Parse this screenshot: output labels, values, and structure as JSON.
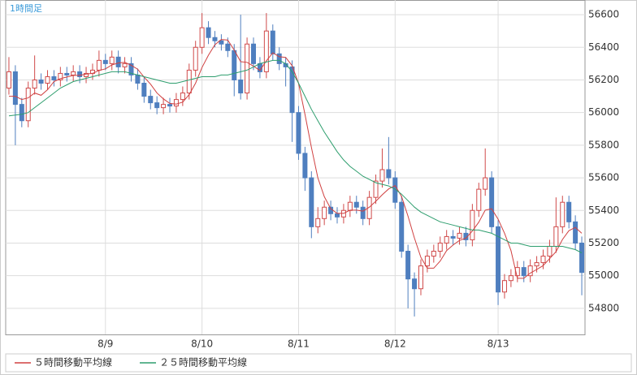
{
  "chart_data": {
    "type": "candlestick",
    "title": "1時間足",
    "categories": [
      null,
      null,
      null,
      null,
      null,
      null,
      null,
      null,
      null,
      null,
      null,
      null,
      null,
      null,
      null,
      "8/9",
      null,
      null,
      null,
      null,
      null,
      null,
      null,
      null,
      null,
      null,
      null,
      null,
      null,
      null,
      "8/10",
      null,
      null,
      null,
      null,
      null,
      null,
      null,
      null,
      null,
      null,
      null,
      null,
      null,
      null,
      "8/11",
      null,
      null,
      null,
      null,
      null,
      null,
      null,
      null,
      null,
      null,
      null,
      null,
      null,
      null,
      "8/12",
      null,
      null,
      null,
      null,
      null,
      null,
      null,
      null,
      null,
      null,
      null,
      null,
      null,
      null,
      null,
      "8/13",
      null,
      null,
      null,
      null,
      null,
      null,
      null,
      null,
      null,
      null,
      null,
      null,
      null
    ],
    "open": [
      56150,
      56250,
      56050,
      55950,
      56150,
      56200,
      56180,
      56220,
      56200,
      56240,
      56230,
      56250,
      56220,
      56240,
      56260,
      56320,
      56300,
      56340,
      56280,
      56300,
      56230,
      56180,
      56100,
      56060,
      56030,
      56050,
      56040,
      56080,
      56120,
      56260,
      56400,
      56520,
      56460,
      56440,
      56420,
      56380,
      56200,
      56120,
      56420,
      56300,
      56250,
      56500,
      56360,
      56300,
      56280,
      56000,
      55750,
      55600,
      55300,
      55350,
      55420,
      55380,
      55360,
      55400,
      55450,
      55420,
      55350,
      55480,
      55580,
      55650,
      55600,
      55450,
      55150,
      54980,
      54920,
      55060,
      55120,
      55150,
      55200,
      55240,
      55230,
      55260,
      55220,
      55400,
      55530,
      55600,
      55300,
      54900,
      54970,
      55000,
      55050,
      55000,
      55060,
      55080,
      55120,
      55180,
      55300,
      55450,
      55330,
      55200
    ],
    "high": [
      56340,
      56290,
      56090,
      56190,
      56350,
      56240,
      56260,
      56260,
      56280,
      56280,
      56290,
      56290,
      56280,
      56300,
      56380,
      56360,
      56380,
      56380,
      56340,
      56340,
      56270,
      56220,
      56140,
      56100,
      56090,
      56090,
      56120,
      56160,
      56300,
      56440,
      56610,
      56560,
      56500,
      56480,
      56460,
      56420,
      56600,
      56460,
      56460,
      56340,
      56610,
      56540,
      56400,
      56340,
      56320,
      56040,
      55790,
      55640,
      55420,
      55460,
      55460,
      55420,
      55440,
      55490,
      55490,
      55460,
      55520,
      55620,
      55780,
      55850,
      55640,
      55490,
      55190,
      55020,
      55100,
      55160,
      55190,
      55240,
      55280,
      55280,
      55300,
      55300,
      55440,
      55570,
      55780,
      55640,
      55340,
      55010,
      55040,
      55090,
      55090,
      55100,
      55120,
      55160,
      55220,
      55480,
      55490,
      55490,
      55370,
      55240
    ],
    "low": [
      56110,
      55800,
      55910,
      55910,
      56110,
      56140,
      56140,
      56160,
      56160,
      56190,
      56190,
      56180,
      56180,
      56200,
      56220,
      56260,
      56260,
      56240,
      56240,
      56190,
      56140,
      56060,
      56020,
      55990,
      55990,
      56000,
      56000,
      56040,
      56080,
      56220,
      56360,
      56420,
      56400,
      56380,
      56340,
      56100,
      56080,
      56080,
      56260,
      56210,
      56210,
      56320,
      56260,
      56160,
      55820,
      55710,
      55520,
      55230,
      55260,
      55310,
      55340,
      55320,
      55320,
      55360,
      55380,
      55310,
      55310,
      55440,
      55540,
      55560,
      55410,
      55110,
      54800,
      54750,
      54880,
      55020,
      55080,
      55110,
      55160,
      55190,
      55190,
      55180,
      55180,
      55360,
      55490,
      55260,
      54820,
      54860,
      54930,
      54960,
      54960,
      54960,
      55020,
      55040,
      55080,
      55140,
      55260,
      55290,
      55160,
      54880
    ],
    "close": [
      56250,
      56050,
      55950,
      56150,
      56200,
      56180,
      56220,
      56200,
      56240,
      56230,
      56250,
      56220,
      56240,
      56260,
      56320,
      56300,
      56340,
      56280,
      56300,
      56230,
      56180,
      56100,
      56060,
      56030,
      56050,
      56040,
      56080,
      56120,
      56260,
      56400,
      56520,
      56460,
      56440,
      56420,
      56380,
      56200,
      56120,
      56420,
      56300,
      56250,
      56500,
      56360,
      56300,
      56280,
      56000,
      55750,
      55600,
      55300,
      55350,
      55420,
      55380,
      55360,
      55400,
      55450,
      55420,
      55350,
      55480,
      55580,
      55650,
      55600,
      55450,
      55150,
      54980,
      54920,
      55060,
      55120,
      55150,
      55200,
      55240,
      55230,
      55260,
      55220,
      55400,
      55530,
      55600,
      55300,
      54900,
      54970,
      55000,
      55050,
      55000,
      55060,
      55080,
      55120,
      55180,
      55300,
      55450,
      55330,
      55200,
      55020
    ],
    "up_color": "#d04a4a",
    "down_color": "#4f7fbf",
    "lines": [
      {
        "name": "５時間移動平均線",
        "color": "#d04040",
        "values": [
          56100,
          56100,
          56080,
          56090,
          56120,
          56106,
          56140,
          56190,
          56208,
          56218,
          56228,
          56228,
          56236,
          56240,
          56258,
          56268,
          56292,
          56304,
          56308,
          56290,
          56266,
          56218,
          56174,
          56120,
          56084,
          56056,
          56052,
          56064,
          56110,
          56180,
          56276,
          56352,
          56416,
          56448,
          56444,
          56384,
          56312,
          56308,
          56284,
          56258,
          56318,
          56366,
          56342,
          56338,
          56288,
          56178,
          55988,
          55786,
          55600,
          55484,
          55410,
          55382,
          55382,
          55402,
          55402,
          55396,
          55420,
          55456,
          55496,
          55532,
          55552,
          55486,
          55366,
          55230,
          55112,
          55046,
          55046,
          55090,
          55154,
          55188,
          55216,
          55230,
          55274,
          55328,
          55402,
          55410,
          55346,
          55260,
          55154,
          54984,
          54984,
          55016,
          55038,
          55062,
          55104,
          55148,
          55222,
          55276,
          55296,
          55260
        ]
      },
      {
        "name": "２５時間移動平均線",
        "color": "#2e9e6e",
        "values": [
          55980,
          55985,
          55990,
          56000,
          56030,
          56060,
          56090,
          56120,
          56150,
          56170,
          56190,
          56200,
          56210,
          56220,
          56230,
          56240,
          56250,
          56250,
          56250,
          56240,
          56230,
          56220,
          56210,
          56200,
          56190,
          56180,
          56180,
          56190,
          56200,
          56210,
          56220,
          56220,
          56220,
          56230,
          56230,
          56240,
          56250,
          56260,
          56280,
          56300,
          56310,
          56320,
          56320,
          56300,
          56250,
          56180,
          56100,
          56020,
          55950,
          55880,
          55820,
          55760,
          55710,
          55670,
          55640,
          55610,
          55590,
          55570,
          55560,
          55550,
          55530,
          55500,
          55460,
          55420,
          55390,
          55370,
          55350,
          55330,
          55320,
          55310,
          55300,
          55290,
          55280,
          55280,
          55270,
          55260,
          55240,
          55220,
          55200,
          55200,
          55190,
          55180,
          55180,
          55180,
          55180,
          55180,
          55180,
          55170,
          55160,
          55140
        ]
      }
    ],
    "ylim": [
      54640,
      56690
    ],
    "yticks": [
      54800,
      55000,
      55200,
      55400,
      55600,
      55800,
      56000,
      56200,
      56400,
      56600
    ],
    "grid": true
  }
}
